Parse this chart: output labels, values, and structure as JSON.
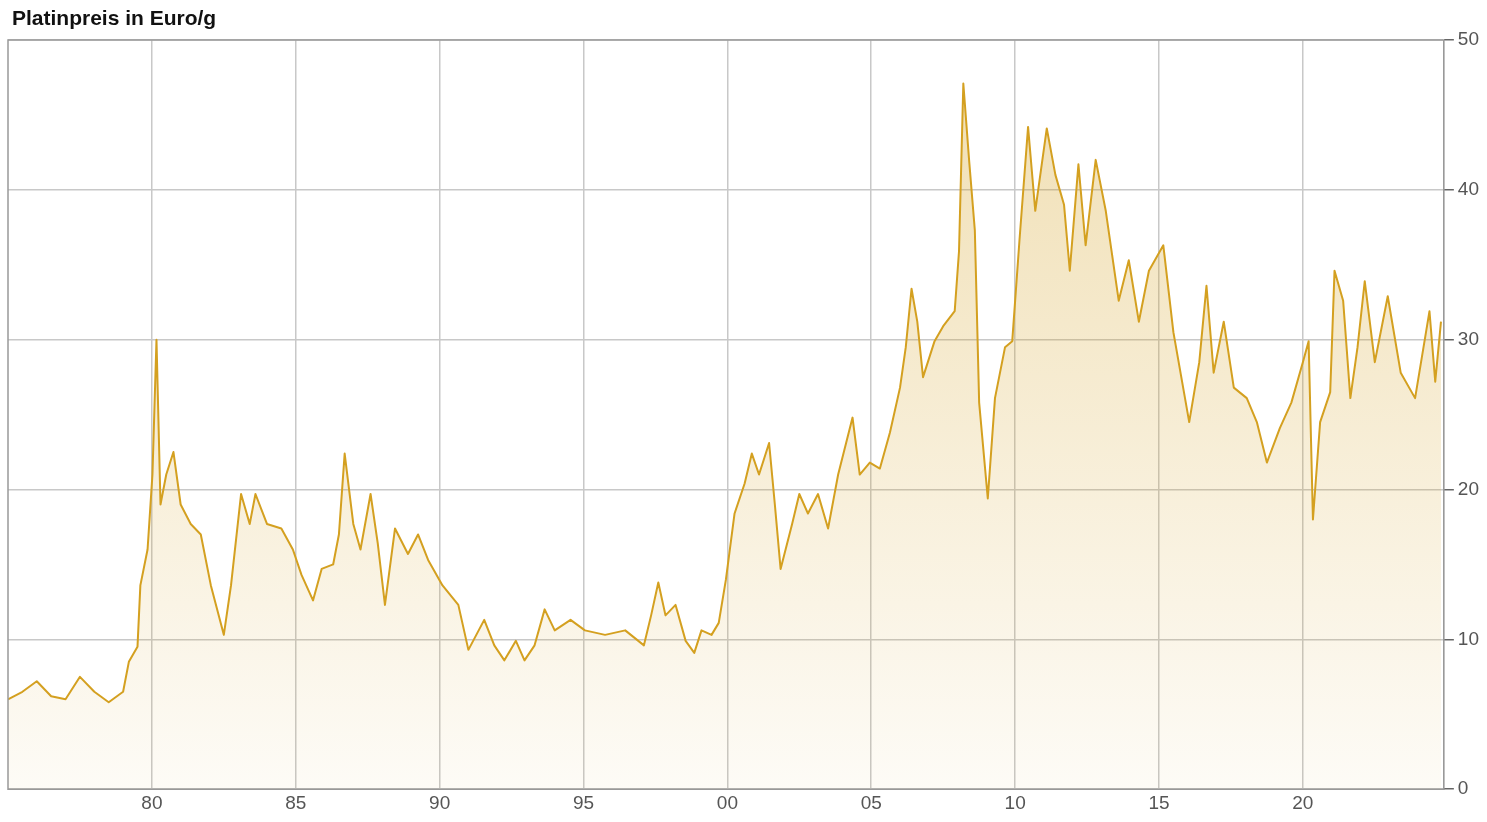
{
  "chart_data": {
    "type": "area",
    "title": "Platinpreis in Euro/g",
    "x": [
      1975.0,
      1975.5,
      1976.0,
      1976.5,
      1977.0,
      1977.5,
      1978.0,
      1978.5,
      1979.0,
      1979.2,
      1979.5,
      1979.6,
      1979.85,
      1980.02,
      1980.16,
      1980.3,
      1980.5,
      1980.75,
      1981.0,
      1981.35,
      1981.7,
      1982.05,
      1982.5,
      1982.75,
      1983.1,
      1983.4,
      1983.6,
      1984.0,
      1984.5,
      1984.9,
      1985.2,
      1985.6,
      1985.9,
      1986.3,
      1986.5,
      1986.7,
      1987.0,
      1987.25,
      1987.6,
      1987.85,
      1988.1,
      1988.45,
      1988.9,
      1989.25,
      1989.6,
      1990.1,
      1990.65,
      1991.0,
      1991.55,
      1991.9,
      1992.25,
      1992.65,
      1992.95,
      1993.3,
      1993.65,
      1994.0,
      1994.55,
      1995.05,
      1995.75,
      1996.45,
      1997.1,
      1997.35,
      1997.6,
      1997.85,
      1998.2,
      1998.55,
      1998.85,
      1999.1,
      1999.45,
      1999.7,
      1999.95,
      2000.25,
      2000.6,
      2000.85,
      2001.1,
      2001.45,
      2001.65,
      2001.85,
      2002.25,
      2002.5,
      2002.8,
      2003.15,
      2003.5,
      2003.85,
      2004.35,
      2004.6,
      2004.95,
      2005.3,
      2005.65,
      2006.0,
      2006.2,
      2006.4,
      2006.6,
      2006.8,
      2007.2,
      2007.5,
      2007.9,
      2008.05,
      2008.2,
      2008.4,
      2008.6,
      2008.75,
      2009.05,
      2009.3,
      2009.65,
      2009.9,
      2010.15,
      2010.45,
      2010.7,
      2011.1,
      2011.4,
      2011.7,
      2011.9,
      2012.2,
      2012.45,
      2012.8,
      2013.15,
      2013.6,
      2013.95,
      2014.3,
      2014.65,
      2015.15,
      2015.5,
      2016.05,
      2016.4,
      2016.65,
      2016.9,
      2017.25,
      2017.6,
      2018.05,
      2018.4,
      2018.75,
      2019.2,
      2019.6,
      2020.0,
      2020.2,
      2020.35,
      2020.6,
      2020.95,
      2021.1,
      2021.4,
      2021.65,
      2021.9,
      2022.15,
      2022.5,
      2022.95,
      2023.4,
      2023.9,
      2024.4,
      2024.6,
      2024.8
    ],
    "series": [
      {
        "color": "#d4a020",
        "values": [
          6,
          6.5,
          7.2,
          6.2,
          6,
          7.5,
          6.5,
          5.8,
          6.5,
          8.5,
          9.5,
          13.6,
          16,
          21,
          30,
          19,
          21,
          22.5,
          19,
          17.7,
          17,
          13.6,
          10.3,
          13.6,
          19.7,
          17.7,
          19.7,
          17.7,
          17.4,
          16,
          14.3,
          12.6,
          14.7,
          15,
          17,
          22.4,
          17.7,
          16,
          19.7,
          16.4,
          12.3,
          17.4,
          15.7,
          17,
          15.3,
          13.6,
          12.3,
          9.3,
          11.3,
          9.6,
          8.6,
          9.9,
          8.6,
          9.6,
          12,
          10.6,
          11.3,
          10.6,
          10.3,
          10.6,
          9.6,
          11.6,
          13.8,
          11.6,
          12.3,
          9.9,
          9.1,
          10.6,
          10.3,
          11.1,
          14,
          18.4,
          20.4,
          22.4,
          21,
          23.1,
          19,
          14.7,
          17.7,
          19.7,
          18.4,
          19.7,
          17.4,
          21,
          24.8,
          21,
          21.8,
          21.4,
          23.8,
          26.8,
          29.5,
          33.4,
          31.2,
          27.5,
          29.9,
          30.9,
          31.9,
          35.9,
          47.1,
          42,
          37.3,
          25.8,
          19.4,
          26.1,
          29.5,
          29.9,
          36.6,
          44.2,
          38.6,
          44.1,
          41,
          39,
          34.6,
          41.7,
          36.3,
          42,
          38.6,
          32.6,
          35.3,
          31.2,
          34.6,
          36.3,
          30.5,
          24.5,
          28.5,
          33.6,
          27.8,
          31.2,
          26.8,
          26.1,
          24.5,
          21.8,
          24.1,
          25.8,
          28.5,
          29.9,
          18,
          24.5,
          26.5,
          34.6,
          32.6,
          26.1,
          29.5,
          33.9,
          28.5,
          32.9,
          27.8,
          26.1,
          31.9,
          27.2,
          31.2
        ]
      }
    ],
    "xlim": [
      1975,
      2024.9
    ],
    "xticks": [
      {
        "value": 1980,
        "label": "80"
      },
      {
        "value": 1985,
        "label": "85"
      },
      {
        "value": 1990,
        "label": "90"
      },
      {
        "value": 1995,
        "label": "95"
      },
      {
        "value": 2000,
        "label": "00"
      },
      {
        "value": 2005,
        "label": "05"
      },
      {
        "value": 2010,
        "label": "10"
      },
      {
        "value": 2015,
        "label": "15"
      },
      {
        "value": 2020,
        "label": "20"
      }
    ],
    "ylim": [
      0,
      50
    ],
    "yticks": [
      0,
      10,
      20,
      30,
      40,
      50
    ],
    "grid": true,
    "legend": false,
    "marker": "none",
    "line_style": "solid"
  }
}
